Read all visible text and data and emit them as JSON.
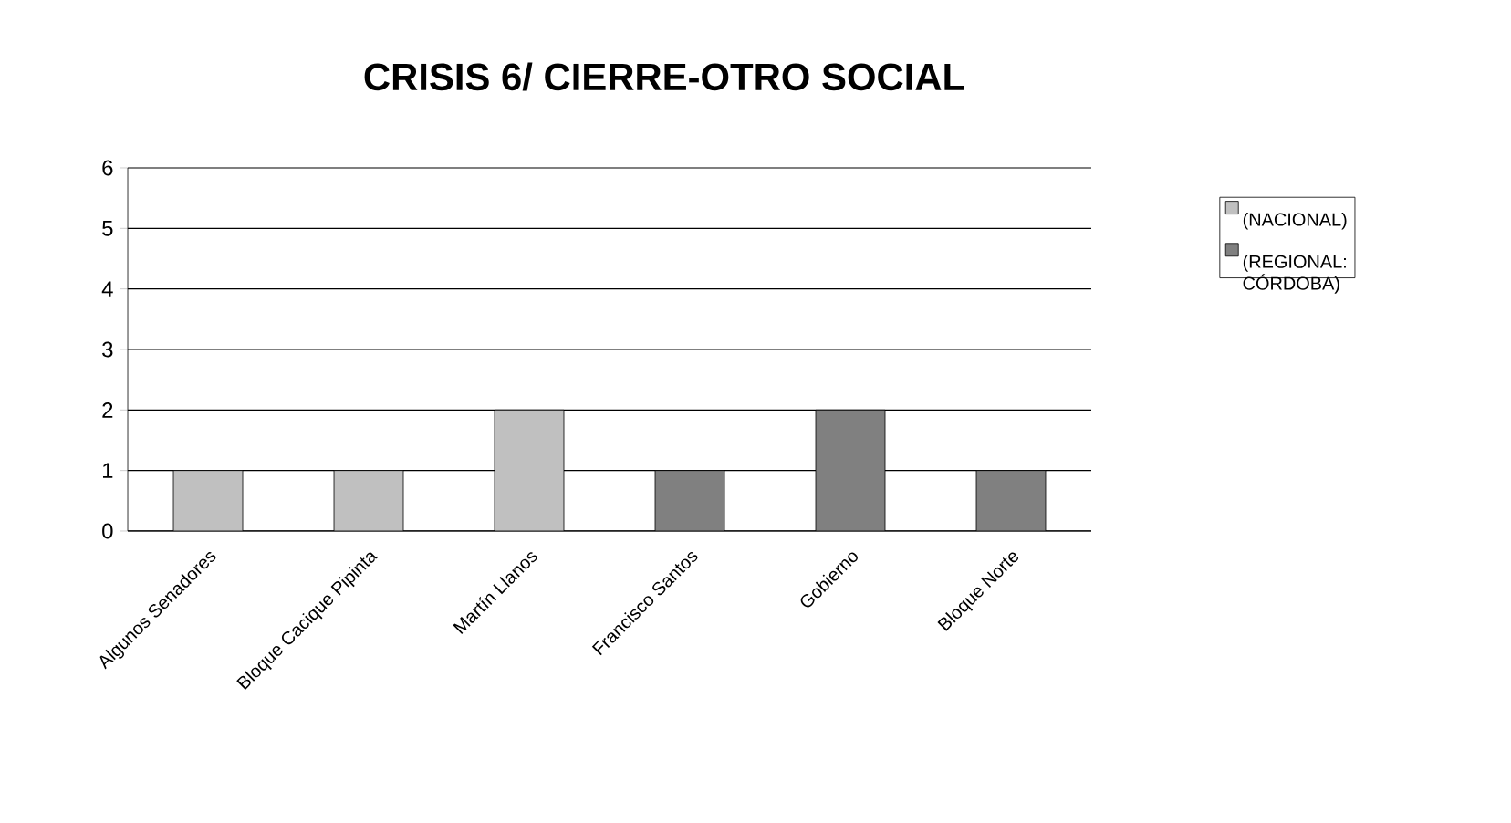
{
  "chart_data": {
    "type": "bar",
    "title": "CRISIS 6/ CIERRE-OTRO SOCIAL",
    "categories": [
      "Algunos Senadores",
      "Bloque Cacique Pipinta",
      "Martín Llanos",
      "Francisco Santos",
      "Gobierno",
      "Bloque Norte"
    ],
    "series": [
      {
        "name": "(NACIONAL)",
        "color": "#c0c0c0",
        "values": [
          1,
          1,
          2,
          null,
          null,
          null
        ]
      },
      {
        "name": "(REGIONAL: CÓRDOBA)",
        "color": "#808080",
        "values": [
          null,
          null,
          null,
          1,
          2,
          1
        ]
      }
    ],
    "ylim": [
      0,
      6
    ],
    "yticks": [
      0,
      1,
      2,
      3,
      4,
      5,
      6
    ],
    "grid": "y",
    "legend": "right"
  }
}
